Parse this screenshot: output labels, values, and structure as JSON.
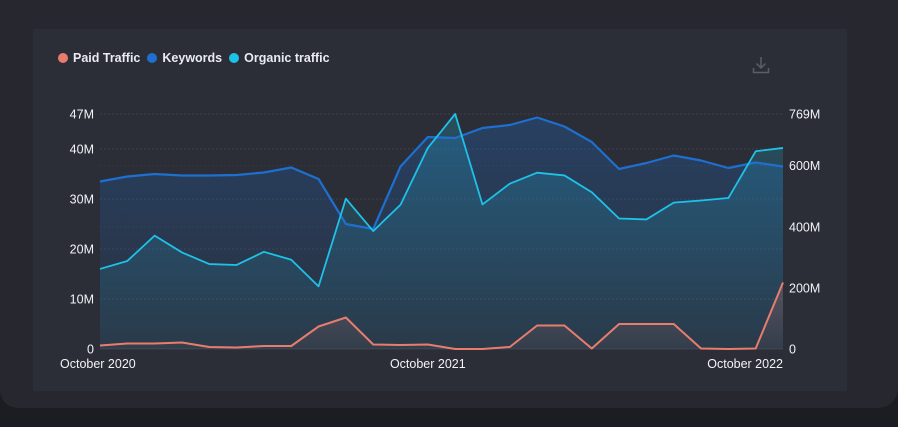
{
  "colors": {
    "paid": "#e87d6e",
    "keywords": "#1e6fd0",
    "organic": "#1ec2e8",
    "grid": "#3c404b",
    "card": "#26272f",
    "panel": "#2b2e37"
  },
  "toolbar": {
    "download_icon": "download-icon"
  },
  "chart_data": {
    "type": "line",
    "legend": [
      "Paid Traffic",
      "Keywords",
      "Organic traffic"
    ],
    "legend_position": "top-left",
    "grid": true,
    "x_ticks": [
      "October 2020",
      "October 2021",
      "October 2022"
    ],
    "x_tick_indices": [
      0,
      12,
      25
    ],
    "left_axis": {
      "ticks": [
        "47M",
        "40M",
        "30M",
        "20M",
        "10M",
        "0"
      ],
      "tick_values": [
        47,
        40,
        30,
        20,
        10,
        0
      ],
      "ylim": [
        0,
        47
      ]
    },
    "right_axis": {
      "ticks": [
        "769M",
        "600M",
        "400M",
        "200M",
        "0"
      ],
      "tick_values": [
        769,
        600,
        400,
        200,
        0
      ],
      "ylim": [
        0,
        769
      ]
    },
    "series": [
      {
        "name": "Paid Traffic",
        "axis": "left",
        "values": [
          0.7,
          1.1,
          1.1,
          1.3,
          0.4,
          0.3,
          0.6,
          0.6,
          4.5,
          6.3,
          0.9,
          0.8,
          0.9,
          0.0,
          0.0,
          0.4,
          4.7,
          4.7,
          0.1,
          5.0,
          5.0,
          5.0,
          0.1,
          0.0,
          0.1,
          13.3
        ]
      },
      {
        "name": "Keywords",
        "axis": "left",
        "values": [
          33.5,
          34.5,
          35.0,
          34.7,
          34.7,
          34.8,
          35.3,
          36.3,
          34.0,
          25.0,
          24.0,
          36.5,
          42.4,
          42.2,
          44.2,
          44.8,
          46.3,
          44.5,
          41.4,
          36.0,
          37.2,
          38.7,
          37.7,
          36.2,
          37.3,
          36.5
        ]
      },
      {
        "name": "Organic traffic",
        "axis": "right",
        "values": [
          262,
          288,
          371,
          316,
          278,
          275,
          318,
          292,
          205,
          492,
          386,
          472,
          658,
          769,
          473,
          541,
          577,
          568,
          513,
          427,
          424,
          479,
          486,
          494,
          647,
          658
        ]
      }
    ]
  }
}
